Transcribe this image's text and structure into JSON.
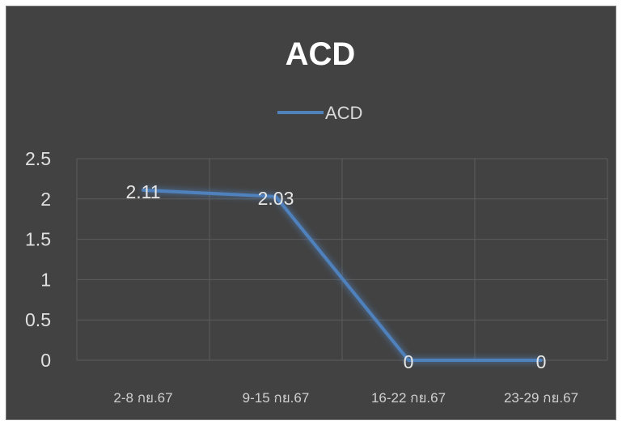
{
  "chart_data": {
    "type": "line",
    "title": "ACD",
    "categories": [
      "2-8 กย.67",
      "9-15 กย.67",
      "16-22 กย.67",
      "23-29 กย.67"
    ],
    "series": [
      {
        "name": "ACD",
        "values": [
          2.11,
          2.03,
          0,
          0
        ],
        "color": "#4f81bd"
      }
    ],
    "data_labels": [
      "2.11",
      "2.03",
      "0",
      "0"
    ],
    "ylim": [
      0,
      2.5
    ],
    "y_ticks": [
      "0",
      "0.5",
      "1",
      "1.5",
      "2",
      "2.5"
    ],
    "y_tick_values": [
      0,
      0.5,
      1,
      1.5,
      2,
      2.5
    ],
    "grid": true,
    "legend_position": "top",
    "background_color": "#424242"
  }
}
